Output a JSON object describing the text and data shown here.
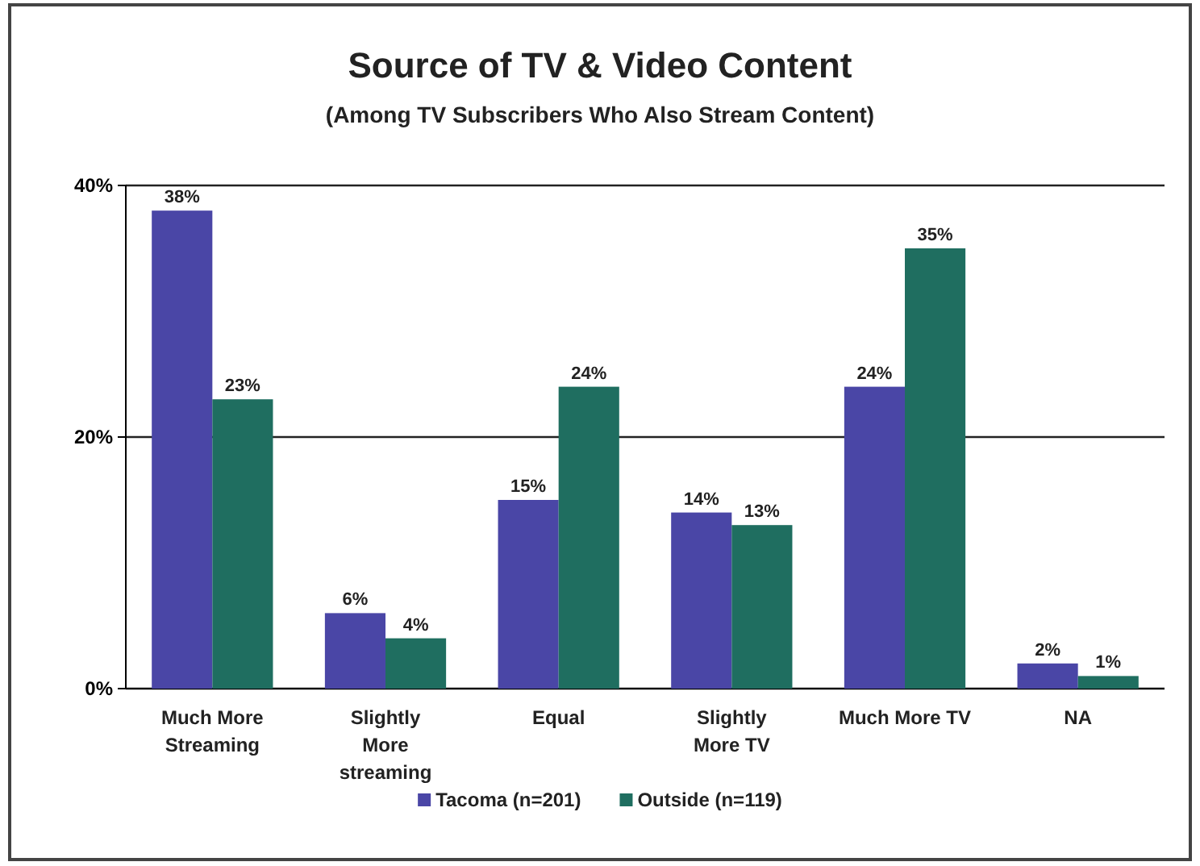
{
  "chart_data": {
    "type": "bar",
    "title": "Source of TV & Video Content",
    "subtitle": "(Among TV Subscribers Who Also Stream Content)",
    "categories": [
      "Much More Streaming",
      "Slightly More streaming",
      "Equal",
      "Slightly More TV",
      "Much More TV",
      "NA"
    ],
    "series": [
      {
        "name": "Tacoma (n=201)",
        "color": "#4a46a6",
        "values": [
          38,
          6,
          15,
          14,
          24,
          2
        ]
      },
      {
        "name": "Outside (n=119)",
        "color": "#1f6e60",
        "values": [
          23,
          4,
          24,
          13,
          35,
          1
        ]
      }
    ],
    "ylim": [
      0,
      40
    ],
    "yticks": [
      {
        "value": 0,
        "label": "0%"
      },
      {
        "value": 20,
        "label": "20%"
      },
      {
        "value": 40,
        "label": "40%"
      }
    ],
    "value_labels": [
      [
        "38%",
        "6%",
        "15%",
        "14%",
        "24%",
        "2%"
      ],
      [
        "23%",
        "4%",
        "24%",
        "13%",
        "35%",
        "1%"
      ]
    ],
    "grid": "y",
    "legend": "bottom"
  }
}
